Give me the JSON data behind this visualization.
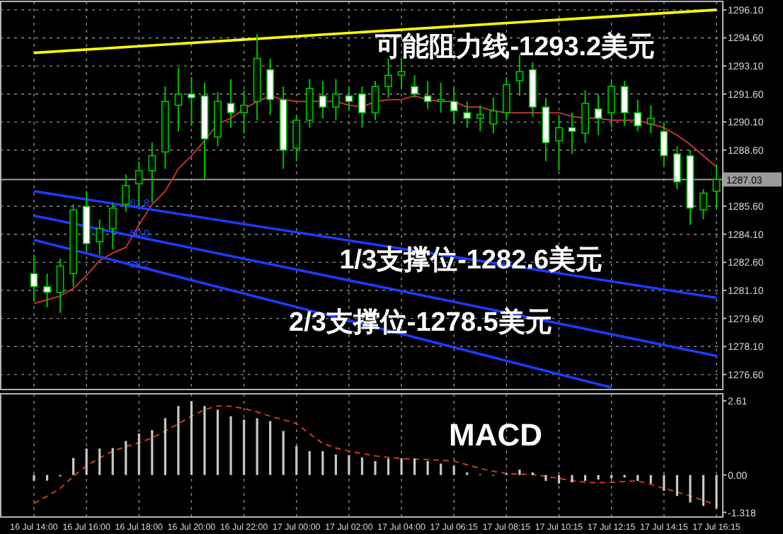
{
  "chart_data": [
    {
      "type": "candlestick",
      "color": "#00c000",
      "tick_labels": "y",
      "grid": true,
      "categories": [
        "16 Jul 14:00",
        null,
        null,
        null,
        "16 Jul 16:00",
        null,
        null,
        null,
        "16 Jul 18:00",
        null,
        null,
        null,
        "16 Jul 20:00",
        null,
        null,
        null,
        "16 Jul 22:00",
        null,
        null,
        null,
        "17 Jul 00:00",
        null,
        null,
        null,
        "17 Jul 02:00",
        null,
        null,
        null,
        "17 Jul 04:00",
        null,
        null,
        null,
        "17 Jul 06:15",
        null,
        null,
        null,
        "17 Jul 08:15",
        null,
        null,
        null,
        "17 Jul 10:15",
        null,
        null,
        null,
        "17 Jul 12:15",
        null,
        null,
        null,
        "17 Jul 14:15",
        null,
        null,
        null,
        "17 Jul 16:15"
      ],
      "ohlc": [
        [
          1282.0,
          1283.0,
          1280.5,
          1281.3
        ],
        [
          1281.3,
          1282.0,
          1280.2,
          1281.0
        ],
        [
          1281.0,
          1282.8,
          1279.9,
          1282.4
        ],
        [
          1282.0,
          1285.7,
          1281.3,
          1285.4
        ],
        [
          1285.6,
          1286.4,
          1283.2,
          1283.6
        ],
        [
          1283.7,
          1284.9,
          1283.0,
          1284.4
        ],
        [
          1284.4,
          1285.8,
          1283.3,
          1285.5
        ],
        [
          1285.7,
          1287.3,
          1285.3,
          1286.7
        ],
        [
          1286.8,
          1288.0,
          1285.6,
          1287.5
        ],
        [
          1287.5,
          1289.0,
          1285.8,
          1288.3
        ],
        [
          1288.5,
          1292.0,
          1287.6,
          1291.2
        ],
        [
          1291.0,
          1293.0,
          1289.6,
          1291.6
        ],
        [
          1291.6,
          1292.5,
          1289.9,
          1291.4
        ],
        [
          1291.5,
          1292.2,
          1287.0,
          1289.2
        ],
        [
          1289.3,
          1291.7,
          1288.8,
          1291.2
        ],
        [
          1291.1,
          1292.4,
          1289.8,
          1290.6
        ],
        [
          1290.6,
          1291.8,
          1289.5,
          1291.0
        ],
        [
          1291.2,
          1294.8,
          1290.2,
          1293.5
        ],
        [
          1292.9,
          1293.5,
          1290.5,
          1291.3
        ],
        [
          1291.3,
          1292.0,
          1287.6,
          1288.6
        ],
        [
          1288.7,
          1290.5,
          1288.0,
          1290.2
        ],
        [
          1290.2,
          1292.4,
          1289.8,
          1291.9
        ],
        [
          1291.5,
          1292.3,
          1290.3,
          1290.9
        ],
        [
          1290.9,
          1292.4,
          1290.2,
          1291.6
        ],
        [
          1291.5,
          1292.0,
          1290.7,
          1291.2
        ],
        [
          1291.6,
          1292.0,
          1289.8,
          1290.6
        ],
        [
          1290.6,
          1292.3,
          1290.2,
          1292.0
        ],
        [
          1292.0,
          1293.5,
          1291.4,
          1292.6
        ],
        [
          1292.6,
          1293.5,
          1291.9,
          1292.8
        ],
        [
          1292.0,
          1292.6,
          1291.4,
          1291.6
        ],
        [
          1291.5,
          1292.3,
          1290.8,
          1291.2
        ],
        [
          1291.2,
          1292.2,
          1290.6,
          1291.3
        ],
        [
          1291.2,
          1292.0,
          1290.0,
          1290.7
        ],
        [
          1290.6,
          1291.2,
          1289.8,
          1290.3
        ],
        [
          1290.3,
          1291.0,
          1289.6,
          1290.5
        ],
        [
          1290.0,
          1291.4,
          1289.5,
          1290.7
        ],
        [
          1290.6,
          1292.5,
          1290.2,
          1292.1
        ],
        [
          1292.3,
          1293.7,
          1291.5,
          1292.8
        ],
        [
          1292.9,
          1293.3,
          1290.4,
          1290.9
        ],
        [
          1290.9,
          1291.4,
          1288.0,
          1289.0
        ],
        [
          1289.1,
          1290.4,
          1287.5,
          1289.8
        ],
        [
          1289.8,
          1290.6,
          1288.4,
          1289.6
        ],
        [
          1289.5,
          1291.8,
          1289.0,
          1291.1
        ],
        [
          1290.8,
          1291.6,
          1289.4,
          1290.3
        ],
        [
          1290.6,
          1292.3,
          1289.8,
          1292.0
        ],
        [
          1292.0,
          1292.3,
          1289.9,
          1290.6
        ],
        [
          1290.6,
          1291.3,
          1289.6,
          1289.9
        ],
        [
          1290.0,
          1291.0,
          1289.5,
          1290.3
        ],
        [
          1289.6,
          1290.1,
          1287.8,
          1288.3
        ],
        [
          1288.4,
          1288.8,
          1286.5,
          1286.9
        ],
        [
          1288.3,
          1288.6,
          1284.6,
          1285.5
        ],
        [
          1285.4,
          1286.5,
          1284.9,
          1286.3
        ],
        [
          1286.4,
          1287.8,
          1285.4,
          1287.03
        ]
      ],
      "series": [
        {
          "type": "line",
          "color": "#c8302a",
          "values": [
            1280.4,
            1280.6,
            1280.8,
            1281.2,
            1281.9,
            1282.7,
            1283.1,
            1283.4,
            1284.6,
            1285.7,
            1286.4,
            1287.6,
            1288.3,
            1289.1,
            1290.0,
            1290.3,
            1290.8,
            1291.2,
            1291.5,
            1291.3,
            1291.2,
            1291.2,
            1291.2,
            1291.2,
            1291.0,
            1290.9,
            1291.2,
            1291.3,
            1291.3,
            1291.5,
            1291.3,
            1291.2,
            1291.2,
            1290.9,
            1290.9,
            1290.7,
            1290.6,
            1290.6,
            1290.6,
            1290.6,
            1290.6,
            1290.4,
            1290.3,
            1290.3,
            1290.2,
            1290.2,
            1290.2,
            1290.0,
            1289.8,
            1289.4,
            1288.9,
            1288.3,
            1287.7
          ]
        },
        {
          "type": "line",
          "color": "#ffff00",
          "x": [
            "16 Jul 14:00",
            "17 Jul 16:15"
          ],
          "values": [
            1293.8,
            1296.1
          ]
        },
        {
          "type": "line",
          "color": "#1a3cff",
          "x": [
            "16 Jul 14:00",
            "17 Jul 16:15"
          ],
          "values": [
            1286.4,
            1280.7
          ]
        },
        {
          "type": "line",
          "color": "#1a3cff",
          "x": [
            "16 Jul 14:00",
            "17 Jul 16:15"
          ],
          "values": [
            1285.1,
            1277.6
          ]
        },
        {
          "type": "line",
          "color": "#1a3cff",
          "x": [
            "16 Jul 14:00",
            "17 Jul 12:15"
          ],
          "values": [
            1283.8,
            1275.9
          ]
        }
      ],
      "ylim": [
        1275.8,
        1296.55
      ],
      "yticks": [
        {
          "value": 1296.1,
          "label": "1296.10"
        },
        {
          "value": 1294.6,
          "label": "1294.60"
        },
        {
          "value": 1293.1,
          "label": "1293.10"
        },
        {
          "value": 1291.6,
          "label": "1291.60"
        },
        {
          "value": 1290.1,
          "label": "1290.10"
        },
        {
          "value": 1288.6,
          "label": "1288.60"
        },
        {
          "value": 1285.6,
          "label": "1285.60"
        },
        {
          "value": 1284.1,
          "label": "1284.10"
        },
        {
          "value": 1282.6,
          "label": "1282.60"
        },
        {
          "value": 1281.1,
          "label": "1281.10"
        },
        {
          "value": 1279.6,
          "label": "1279.60"
        },
        {
          "value": 1278.1,
          "label": "1278.10"
        },
        {
          "value": 1276.6,
          "label": "1276.60"
        }
      ],
      "ref_lines": [
        {
          "axis": "y",
          "value": 1287.03,
          "label": "1287.03",
          "color": "#9a9a9a"
        }
      ],
      "annotations": [
        "可能阻力线-1293.2美元",
        "1/3支撑位-1282.6美元",
        "2/3支撑位-1278.5美元",
        "61.8",
        "50.0",
        "38.2"
      ]
    },
    {
      "type": "bar",
      "title": "MACD",
      "grid": "x",
      "categories": [
        "16 Jul 14:00",
        null,
        null,
        null,
        "16 Jul 16:00",
        null,
        null,
        null,
        "16 Jul 18:00",
        null,
        null,
        null,
        "16 Jul 20:00",
        null,
        null,
        null,
        "16 Jul 22:00",
        null,
        null,
        null,
        "17 Jul 00:00",
        null,
        null,
        null,
        "17 Jul 02:00",
        null,
        null,
        null,
        "17 Jul 04:00",
        null,
        null,
        null,
        "17 Jul 06:15",
        null,
        null,
        null,
        "17 Jul 08:15",
        null,
        null,
        null,
        "17 Jul 10:15",
        null,
        null,
        null,
        "17 Jul 12:15",
        null,
        null,
        null,
        "17 Jul 14:15",
        null,
        null,
        null,
        "17 Jul 16:15"
      ],
      "series": [
        {
          "type": "bar",
          "color": "#c8c8c8",
          "values": [
            -0.2,
            -0.2,
            -0.05,
            0.6,
            0.93,
            0.93,
            0.95,
            1.2,
            1.46,
            1.58,
            2.0,
            2.43,
            2.6,
            2.43,
            2.3,
            2.07,
            1.95,
            2.0,
            1.9,
            1.55,
            1.02,
            0.84,
            0.84,
            0.72,
            0.7,
            0.62,
            0.49,
            0.58,
            0.58,
            0.58,
            0.49,
            0.4,
            0.32,
            0.09,
            0.02,
            0,
            0.05,
            0.19,
            0.09,
            -0.21,
            -0.3,
            -0.26,
            -0.21,
            -0.16,
            -0.12,
            -0.09,
            -0.21,
            -0.3,
            -0.56,
            -0.74,
            -0.97,
            -1.09,
            -1.18
          ]
        },
        {
          "type": "line",
          "color": "#d03a20",
          "line_style": "dashed",
          "values": [
            -1.0,
            -0.75,
            -0.47,
            -0.05,
            0.32,
            0.6,
            0.84,
            1.0,
            1.14,
            1.3,
            1.55,
            1.8,
            2.07,
            2.3,
            2.43,
            2.42,
            2.34,
            2.22,
            2.07,
            1.95,
            1.81,
            1.45,
            1.11,
            0.95,
            0.84,
            0.75,
            0.67,
            0.62,
            0.58,
            0.56,
            0.54,
            0.52,
            0.49,
            0.36,
            0.23,
            0.13,
            0.05,
            0.03,
            0.02,
            -0.05,
            -0.12,
            -0.2,
            -0.26,
            -0.27,
            -0.26,
            -0.23,
            -0.21,
            -0.33,
            -0.47,
            -0.6,
            -0.74,
            -0.9,
            -1.05
          ]
        }
      ],
      "ylim": [
        -1.48,
        2.86
      ],
      "yticks": [
        {
          "value": 2.61,
          "label": "2.61"
        },
        {
          "value": 0,
          "label": "0.00"
        },
        {
          "value": -1.318,
          "label": "-1.318"
        }
      ]
    }
  ]
}
